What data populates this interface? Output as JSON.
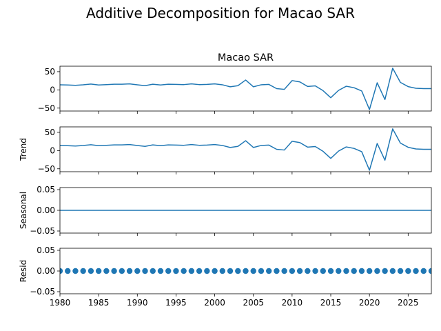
{
  "figure": {
    "suptitle": "Additive Decomposition for Macao SAR",
    "line_color": "#1f77b4"
  },
  "chart_data": [
    {
      "type": "line",
      "panel": "observed",
      "title": "Macao SAR",
      "ylabel": "",
      "xlim": [
        1980,
        2028
      ],
      "ylim": [
        -58,
        65
      ],
      "yticks": [
        50,
        0,
        -50
      ],
      "ytick_labels": [
        "50",
        "0",
        "−50"
      ],
      "series": [
        {
          "x": [
            1980,
            1981,
            1982,
            1983,
            1984,
            1985,
            1986,
            1987,
            1988,
            1989,
            1990,
            1991,
            1992,
            1993,
            1994,
            1995,
            1996,
            1997,
            1998,
            1999,
            2000,
            2001,
            2002,
            2003,
            2004,
            2005,
            2006,
            2007,
            2008,
            2009,
            2010,
            2011,
            2012,
            2013,
            2014,
            2015,
            2016,
            2017,
            2018,
            2019,
            2020,
            2021,
            2022,
            2023,
            2024,
            2025,
            2026,
            2027,
            2028
          ],
          "values": [
            14,
            13.5,
            12.5,
            14,
            16,
            13.5,
            14.5,
            15.5,
            15.5,
            16.5,
            14,
            11.5,
            15.5,
            13.5,
            15.5,
            15,
            14.5,
            16.5,
            14.5,
            15,
            16.5,
            14,
            8.5,
            11.5,
            27,
            8.5,
            14,
            15,
            3.5,
            1.5,
            25.5,
            22,
            9.5,
            11,
            -2,
            -21.5,
            -1.5,
            10,
            6,
            -3,
            -54,
            19.5,
            -26.5,
            59.5,
            20.5,
            9,
            4.5,
            3.5,
            3.5
          ]
        }
      ]
    },
    {
      "type": "line",
      "panel": "trend",
      "title": "",
      "ylabel": "Trend",
      "xlim": [
        1980,
        2028
      ],
      "ylim": [
        -58,
        65
      ],
      "yticks": [
        50,
        0,
        -50
      ],
      "ytick_labels": [
        "50",
        "0",
        "−50"
      ],
      "series": [
        {
          "x": [
            1980,
            1981,
            1982,
            1983,
            1984,
            1985,
            1986,
            1987,
            1988,
            1989,
            1990,
            1991,
            1992,
            1993,
            1994,
            1995,
            1996,
            1997,
            1998,
            1999,
            2000,
            2001,
            2002,
            2003,
            2004,
            2005,
            2006,
            2007,
            2008,
            2009,
            2010,
            2011,
            2012,
            2013,
            2014,
            2015,
            2016,
            2017,
            2018,
            2019,
            2020,
            2021,
            2022,
            2023,
            2024,
            2025,
            2026,
            2027,
            2028
          ],
          "values": [
            14,
            13.5,
            12.5,
            14,
            16,
            13.5,
            14.5,
            15.5,
            15.5,
            16.5,
            14,
            11.5,
            15.5,
            13.5,
            15.5,
            15,
            14.5,
            16.5,
            14.5,
            15,
            16.5,
            14,
            8.5,
            11.5,
            27,
            8.5,
            14,
            15,
            3.5,
            1.5,
            25.5,
            22,
            9.5,
            11,
            -2,
            -21.5,
            -1.5,
            10,
            6,
            -3,
            -54,
            19.5,
            -26.5,
            59.5,
            20.5,
            9,
            4.5,
            3.5,
            3.5
          ]
        }
      ]
    },
    {
      "type": "line",
      "panel": "seasonal",
      "title": "",
      "ylabel": "Seasonal",
      "xlim": [
        1980,
        2028
      ],
      "ylim": [
        -0.055,
        0.055
      ],
      "yticks": [
        0.05,
        0,
        -0.05
      ],
      "ytick_labels": [
        "0.05",
        "0.00",
        "−0.05"
      ],
      "series": [
        {
          "x": [
            1980,
            2028
          ],
          "values": [
            0,
            0
          ]
        }
      ]
    },
    {
      "type": "scatter",
      "panel": "resid",
      "title": "",
      "ylabel": "Resid",
      "xlim": [
        1980,
        2028
      ],
      "ylim": [
        -0.055,
        0.055
      ],
      "yticks": [
        0.05,
        0,
        -0.05
      ],
      "ytick_labels": [
        "0.05",
        "0.00",
        "−0.05"
      ],
      "series": [
        {
          "x": [
            1980,
            1981,
            1982,
            1983,
            1984,
            1985,
            1986,
            1987,
            1988,
            1989,
            1990,
            1991,
            1992,
            1993,
            1994,
            1995,
            1996,
            1997,
            1998,
            1999,
            2000,
            2001,
            2002,
            2003,
            2004,
            2005,
            2006,
            2007,
            2008,
            2009,
            2010,
            2011,
            2012,
            2013,
            2014,
            2015,
            2016,
            2017,
            2018,
            2019,
            2020,
            2021,
            2022,
            2023,
            2024,
            2025,
            2026,
            2027,
            2028
          ],
          "values": [
            0,
            0,
            0,
            0,
            0,
            0,
            0,
            0,
            0,
            0,
            0,
            0,
            0,
            0,
            0,
            0,
            0,
            0,
            0,
            0,
            0,
            0,
            0,
            0,
            0,
            0,
            0,
            0,
            0,
            0,
            0,
            0,
            0,
            0,
            0,
            0,
            0,
            0,
            0,
            0,
            0,
            0,
            0,
            0,
            0,
            0,
            0,
            0,
            0
          ]
        }
      ]
    }
  ],
  "x_axis": {
    "ticks": [
      1980,
      1985,
      1990,
      1995,
      2000,
      2005,
      2010,
      2015,
      2020,
      2025
    ],
    "tick_labels": [
      "1980",
      "1985",
      "1990",
      "1995",
      "2000",
      "2005",
      "2010",
      "2015",
      "2020",
      "2025"
    ]
  }
}
